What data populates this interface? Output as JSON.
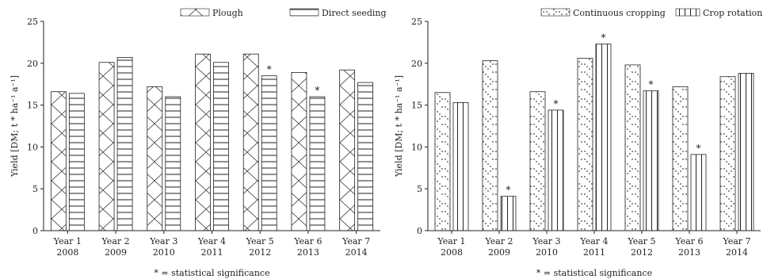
{
  "chart_data": [
    {
      "type": "bar",
      "ylabel": "Yield [DM; t * ha⁻¹ a⁻¹]",
      "ylim": [
        0,
        25
      ],
      "yticks": [
        0,
        5,
        10,
        15,
        20,
        25
      ],
      "categories": [
        "Year 1\n2008",
        "Year 2\n2009",
        "Year 3\n2010",
        "Year 4\n2011",
        "Year 5\n2012",
        "Year 6\n2013",
        "Year 7\n2014"
      ],
      "series": [
        {
          "name": "Plough",
          "values": [
            16.6,
            20.1,
            17.2,
            21.1,
            21.1,
            18.9,
            19.2
          ]
        },
        {
          "name": "Direct seeding",
          "values": [
            16.4,
            20.7,
            16.0,
            20.1,
            18.5,
            16.0,
            17.7
          ]
        }
      ],
      "significant": [
        false,
        false,
        false,
        false,
        true,
        true,
        false
      ],
      "note": "* = statistical significance"
    },
    {
      "type": "bar",
      "ylabel": "Yield [DM; t * ha⁻¹ a⁻¹]",
      "ylim": [
        0,
        25
      ],
      "yticks": [
        0,
        5,
        10,
        15,
        20,
        25
      ],
      "categories": [
        "Year 1\n2008",
        "Year 2\n2009",
        "Year 3\n2010",
        "Year 4\n2011",
        "Year 5\n2012",
        "Year 6\n2013",
        "Year 7\n2014"
      ],
      "series": [
        {
          "name": "Continuous cropping",
          "values": [
            16.5,
            20.3,
            16.6,
            20.6,
            19.8,
            17.2,
            18.4
          ]
        },
        {
          "name": "Crop rotation",
          "values": [
            15.3,
            4.1,
            14.4,
            22.3,
            16.7,
            9.1,
            18.8
          ]
        }
      ],
      "significant": [
        false,
        true,
        true,
        true,
        true,
        true,
        false
      ],
      "note": "* = statistical significance"
    }
  ],
  "labels": {
    "star": "*"
  }
}
